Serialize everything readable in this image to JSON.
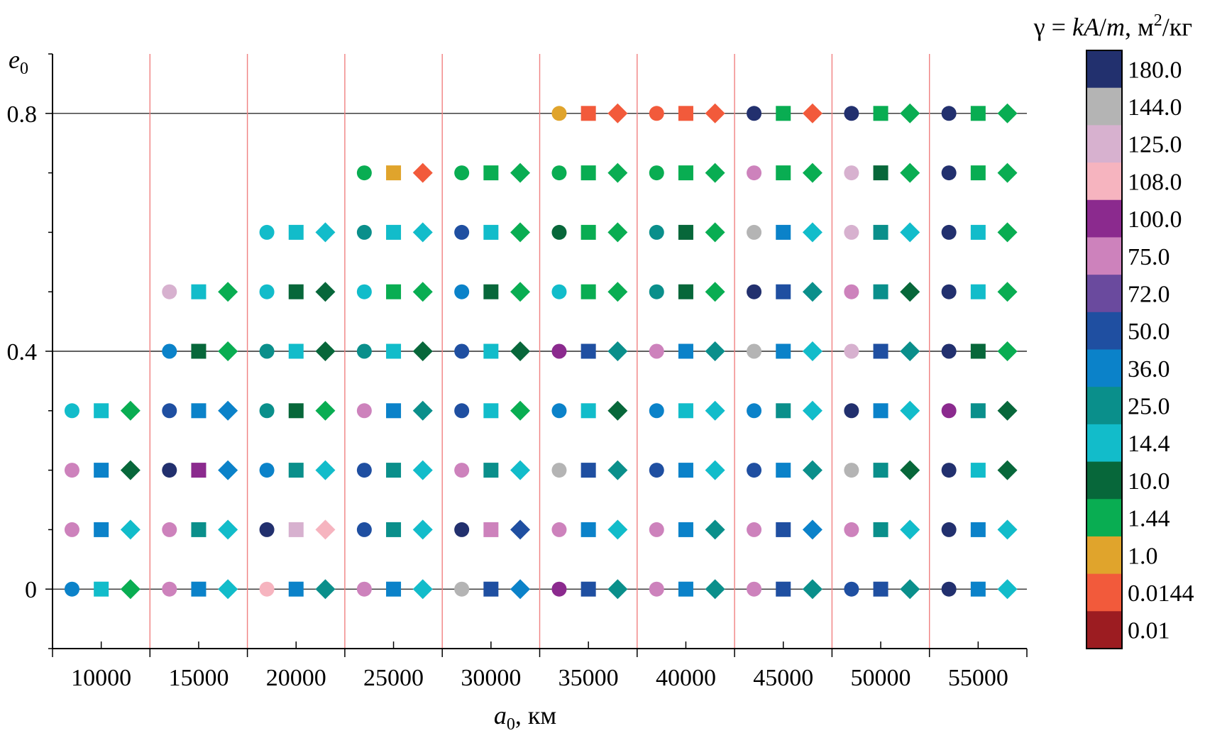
{
  "chart_data": {
    "type": "scatter",
    "xlabel": {
      "symbol": "a",
      "sub": "0",
      "unit": ", км"
    },
    "ylabel": {
      "symbol": "e",
      "sub": "0"
    },
    "x_ticks": [
      10000,
      15000,
      20000,
      25000,
      30000,
      35000,
      40000,
      45000,
      50000,
      55000
    ],
    "x_tick_labels": [
      "10000",
      "15000",
      "20000",
      "25000",
      "30000",
      "35000",
      "40000",
      "45000",
      "50000",
      "55000"
    ],
    "y_ticks": [
      0,
      0.4,
      0.8
    ],
    "y_tick_labels": [
      "0",
      "0.4",
      "0.8"
    ],
    "xlim": [
      7500,
      57500
    ],
    "ylim": [
      -0.1,
      0.9
    ],
    "grid": {
      "horizontal_at": [
        0,
        0.4,
        0.8
      ],
      "vertical_red_at": [
        12500,
        17500,
        22500,
        27500,
        32500,
        37500,
        42500,
        47500,
        52500
      ]
    },
    "legend": {
      "title": {
        "parts": [
          {
            "t": "γ = ",
            "italic": false
          },
          {
            "t": "kA",
            "italic": true
          },
          {
            "t": "/",
            "italic": false
          },
          {
            "t": "m",
            "italic": true
          },
          {
            "t": ",  м",
            "italic": false
          },
          {
            "t": "2",
            "italic": false,
            "sup": true
          },
          {
            "t": "/кг",
            "italic": false
          }
        ]
      },
      "position": "right",
      "levels": [
        {
          "label": "180.0",
          "color": "#22306e"
        },
        {
          "label": "144.0",
          "color": "#b4b4b4"
        },
        {
          "label": "125.0",
          "color": "#d7b1cf"
        },
        {
          "label": "108.0",
          "color": "#f6b4bf"
        },
        {
          "label": "100.0",
          "color": "#8b2a8e"
        },
        {
          "label": "75.0",
          "color": "#cd82bc"
        },
        {
          "label": "72.0",
          "color": "#6a4a9e"
        },
        {
          "label": "50.0",
          "color": "#1f4fa1"
        },
        {
          "label": "36.0",
          "color": "#0b82c9"
        },
        {
          "label": "25.0",
          "color": "#0a8f8b"
        },
        {
          "label": "14.4",
          "color": "#12bcca"
        },
        {
          "label": "10.0",
          "color": "#07673a"
        },
        {
          "label": "1.44",
          "color": "#09ad52"
        },
        {
          "label": "1.0",
          "color": "#e0a42c"
        },
        {
          "label": "0.0144",
          "color": "#f25a3b"
        },
        {
          "label": "0.01",
          "color": "#9c1c21"
        }
      ]
    },
    "marker_x_offsets": {
      "circle": -1500,
      "square": 0,
      "diamond": 1500
    },
    "e_values": [
      0,
      0.1,
      0.2,
      0.3,
      0.4,
      0.5,
      0.6,
      0.7,
      0.8
    ],
    "series": [
      {
        "a0": 10000,
        "points": [
          {
            "e": 0,
            "circle": "36.0",
            "square": "14.4",
            "diamond": "1.44"
          },
          {
            "e": 0.1,
            "circle": "75.0",
            "square": "36.0",
            "diamond": "14.4"
          },
          {
            "e": 0.2,
            "circle": "75.0",
            "square": "36.0",
            "diamond": "10.0"
          },
          {
            "e": 0.3,
            "circle": "14.4",
            "square": "14.4",
            "diamond": "1.44"
          }
        ]
      },
      {
        "a0": 15000,
        "points": [
          {
            "e": 0,
            "circle": "75.0",
            "square": "36.0",
            "diamond": "14.4"
          },
          {
            "e": 0.1,
            "circle": "75.0",
            "square": "25.0",
            "diamond": "14.4"
          },
          {
            "e": 0.2,
            "circle": "180.0",
            "square": "100.0",
            "diamond": "36.0"
          },
          {
            "e": 0.3,
            "circle": "50.0",
            "square": "36.0",
            "diamond": "36.0"
          },
          {
            "e": 0.4,
            "circle": "36.0",
            "square": "10.0",
            "diamond": "1.44"
          },
          {
            "e": 0.5,
            "circle": "125.0",
            "square": "14.4",
            "diamond": "1.44"
          }
        ]
      },
      {
        "a0": 20000,
        "points": [
          {
            "e": 0,
            "circle": "108.0",
            "square": "36.0",
            "diamond": "25.0"
          },
          {
            "e": 0.1,
            "circle": "180.0",
            "square": "125.0",
            "diamond": "108.0"
          },
          {
            "e": 0.2,
            "circle": "36.0",
            "square": "25.0",
            "diamond": "14.4"
          },
          {
            "e": 0.3,
            "circle": "25.0",
            "square": "10.0",
            "diamond": "1.44"
          },
          {
            "e": 0.4,
            "circle": "25.0",
            "square": "14.4",
            "diamond": "10.0"
          },
          {
            "e": 0.5,
            "circle": "14.4",
            "square": "10.0",
            "diamond": "10.0"
          },
          {
            "e": 0.6,
            "circle": "14.4",
            "square": "14.4",
            "diamond": "14.4"
          }
        ]
      },
      {
        "a0": 25000,
        "points": [
          {
            "e": 0,
            "circle": "75.0",
            "square": "36.0",
            "diamond": "14.4"
          },
          {
            "e": 0.1,
            "circle": "50.0",
            "square": "25.0",
            "diamond": "14.4"
          },
          {
            "e": 0.2,
            "circle": "50.0",
            "square": "25.0",
            "diamond": "14.4"
          },
          {
            "e": 0.3,
            "circle": "75.0",
            "square": "36.0",
            "diamond": "25.0"
          },
          {
            "e": 0.4,
            "circle": "25.0",
            "square": "14.4",
            "diamond": "10.0"
          },
          {
            "e": 0.5,
            "circle": "14.4",
            "square": "1.44",
            "diamond": "1.44"
          },
          {
            "e": 0.6,
            "circle": "25.0",
            "square": "14.4",
            "diamond": "14.4"
          },
          {
            "e": 0.7,
            "circle": "1.44",
            "square": "1.0",
            "diamond": "0.0144"
          }
        ]
      },
      {
        "a0": 30000,
        "points": [
          {
            "e": 0,
            "circle": "144.0",
            "square": "50.0",
            "diamond": "36.0"
          },
          {
            "e": 0.1,
            "circle": "180.0",
            "square": "75.0",
            "diamond": "50.0"
          },
          {
            "e": 0.2,
            "circle": "75.0",
            "square": "25.0",
            "diamond": "14.4"
          },
          {
            "e": 0.3,
            "circle": "50.0",
            "square": "14.4",
            "diamond": "1.44"
          },
          {
            "e": 0.4,
            "circle": "50.0",
            "square": "14.4",
            "diamond": "10.0"
          },
          {
            "e": 0.5,
            "circle": "36.0",
            "square": "10.0",
            "diamond": "1.44"
          },
          {
            "e": 0.6,
            "circle": "50.0",
            "square": "14.4",
            "diamond": "1.44"
          },
          {
            "e": 0.7,
            "circle": "1.44",
            "square": "1.44",
            "diamond": "1.44"
          }
        ]
      },
      {
        "a0": 35000,
        "points": [
          {
            "e": 0,
            "circle": "100.0",
            "square": "50.0",
            "diamond": "25.0"
          },
          {
            "e": 0.1,
            "circle": "75.0",
            "square": "36.0",
            "diamond": "14.4"
          },
          {
            "e": 0.2,
            "circle": "144.0",
            "square": "50.0",
            "diamond": "25.0"
          },
          {
            "e": 0.3,
            "circle": "36.0",
            "square": "14.4",
            "diamond": "10.0"
          },
          {
            "e": 0.4,
            "circle": "100.0",
            "square": "50.0",
            "diamond": "25.0"
          },
          {
            "e": 0.5,
            "circle": "14.4",
            "square": "1.44",
            "diamond": "1.44"
          },
          {
            "e": 0.6,
            "circle": "10.0",
            "square": "1.44",
            "diamond": "1.44"
          },
          {
            "e": 0.7,
            "circle": "1.44",
            "square": "1.44",
            "diamond": "1.44"
          },
          {
            "e": 0.8,
            "circle": "1.0",
            "square": "0.0144",
            "diamond": "0.0144"
          }
        ]
      },
      {
        "a0": 40000,
        "points": [
          {
            "e": 0,
            "circle": "75.0",
            "square": "36.0",
            "diamond": "25.0"
          },
          {
            "e": 0.1,
            "circle": "75.0",
            "square": "36.0",
            "diamond": "25.0"
          },
          {
            "e": 0.2,
            "circle": "50.0",
            "square": "36.0",
            "diamond": "14.4"
          },
          {
            "e": 0.3,
            "circle": "36.0",
            "square": "14.4",
            "diamond": "14.4"
          },
          {
            "e": 0.4,
            "circle": "75.0",
            "square": "36.0",
            "diamond": "25.0"
          },
          {
            "e": 0.5,
            "circle": "25.0",
            "square": "10.0",
            "diamond": "1.44"
          },
          {
            "e": 0.6,
            "circle": "25.0",
            "square": "10.0",
            "diamond": "1.44"
          },
          {
            "e": 0.7,
            "circle": "1.44",
            "square": "1.44",
            "diamond": "1.44"
          },
          {
            "e": 0.8,
            "circle": "0.0144",
            "square": "0.0144",
            "diamond": "0.0144"
          }
        ]
      },
      {
        "a0": 45000,
        "points": [
          {
            "e": 0,
            "circle": "75.0",
            "square": "50.0",
            "diamond": "25.0"
          },
          {
            "e": 0.1,
            "circle": "75.0",
            "square": "50.0",
            "diamond": "36.0"
          },
          {
            "e": 0.2,
            "circle": "50.0",
            "square": "36.0",
            "diamond": "25.0"
          },
          {
            "e": 0.3,
            "circle": "36.0",
            "square": "25.0",
            "diamond": "14.4"
          },
          {
            "e": 0.4,
            "circle": "144.0",
            "square": "36.0",
            "diamond": "14.4"
          },
          {
            "e": 0.5,
            "circle": "180.0",
            "square": "50.0",
            "diamond": "25.0"
          },
          {
            "e": 0.6,
            "circle": "144.0",
            "square": "36.0",
            "diamond": "14.4"
          },
          {
            "e": 0.7,
            "circle": "75.0",
            "square": "1.44",
            "diamond": "1.44"
          },
          {
            "e": 0.8,
            "circle": "180.0",
            "square": "1.44",
            "diamond": "0.0144"
          }
        ]
      },
      {
        "a0": 50000,
        "points": [
          {
            "e": 0,
            "circle": "50.0",
            "square": "50.0",
            "diamond": "25.0"
          },
          {
            "e": 0.1,
            "circle": "75.0",
            "square": "25.0",
            "diamond": "14.4"
          },
          {
            "e": 0.2,
            "circle": "144.0",
            "square": "25.0",
            "diamond": "10.0"
          },
          {
            "e": 0.3,
            "circle": "180.0",
            "square": "36.0",
            "diamond": "14.4"
          },
          {
            "e": 0.4,
            "circle": "125.0",
            "square": "50.0",
            "diamond": "25.0"
          },
          {
            "e": 0.5,
            "circle": "75.0",
            "square": "25.0",
            "diamond": "10.0"
          },
          {
            "e": 0.6,
            "circle": "125.0",
            "square": "25.0",
            "diamond": "14.4"
          },
          {
            "e": 0.7,
            "circle": "125.0",
            "square": "10.0",
            "diamond": "1.44"
          },
          {
            "e": 0.8,
            "circle": "180.0",
            "square": "1.44",
            "diamond": "1.44"
          }
        ]
      },
      {
        "a0": 55000,
        "points": [
          {
            "e": 0,
            "circle": "180.0",
            "square": "36.0",
            "diamond": "14.4"
          },
          {
            "e": 0.1,
            "circle": "180.0",
            "square": "36.0",
            "diamond": "14.4"
          },
          {
            "e": 0.2,
            "circle": "180.0",
            "square": "14.4",
            "diamond": "10.0"
          },
          {
            "e": 0.3,
            "circle": "100.0",
            "square": "25.0",
            "diamond": "10.0"
          },
          {
            "e": 0.4,
            "circle": "180.0",
            "square": "10.0",
            "diamond": "1.44"
          },
          {
            "e": 0.5,
            "circle": "180.0",
            "square": "14.4",
            "diamond": "1.44"
          },
          {
            "e": 0.6,
            "circle": "180.0",
            "square": "14.4",
            "diamond": "1.44"
          },
          {
            "e": 0.7,
            "circle": "180.0",
            "square": "1.44",
            "diamond": "1.44"
          },
          {
            "e": 0.8,
            "circle": "180.0",
            "square": "1.44",
            "diamond": "1.44"
          }
        ]
      }
    ]
  }
}
